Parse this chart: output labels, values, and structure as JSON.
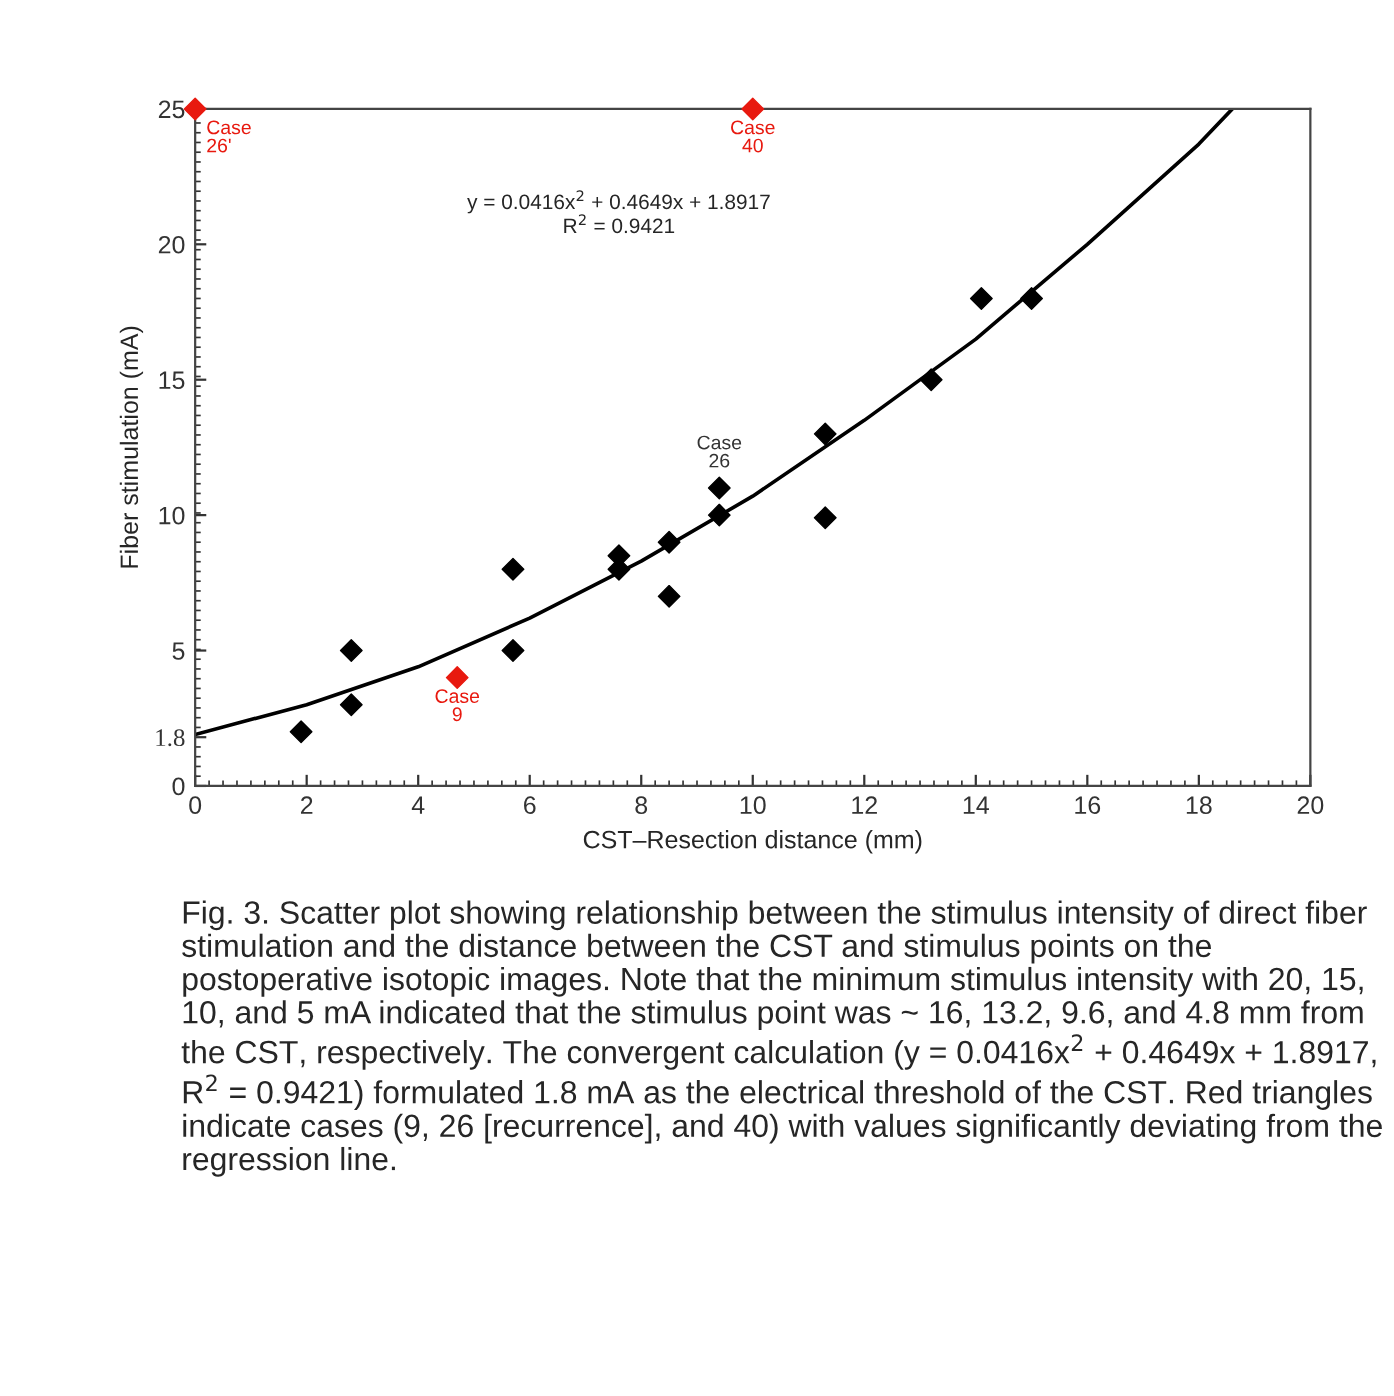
{
  "chart_data": {
    "type": "scatter",
    "xlabel": "CST–Resection distance (mm)",
    "ylabel": "Fiber stimulation (mA)",
    "xlim": [
      0,
      20
    ],
    "xticks": [
      0,
      2,
      4,
      6,
      8,
      10,
      12,
      14,
      16,
      18,
      20
    ],
    "ylim": [
      0,
      25
    ],
    "yticks": [
      0,
      {
        "value": 1.8,
        "label": "1.8"
      },
      5,
      10,
      15,
      20,
      25
    ],
    "marker": "diamond",
    "grid": false,
    "series": [
      {
        "color": "#000000",
        "x": [
          1.9,
          2.8,
          2.8,
          5.7,
          5.7,
          7.6,
          7.6,
          8.5,
          8.5,
          9.4,
          9.4,
          11.3,
          11.3,
          13.2,
          14.1,
          15.0
        ],
        "values": [
          2,
          5,
          3,
          8,
          5,
          8.5,
          8,
          9,
          7,
          11,
          10,
          13,
          9.9,
          15,
          18,
          18
        ]
      },
      {
        "color": "#e8190f",
        "x": [
          0,
          10,
          4.7
        ],
        "values": [
          25,
          25,
          4
        ]
      },
      {
        "type": "line",
        "marker": "none",
        "color": "#000000",
        "x": [
          0,
          2,
          4,
          6,
          8,
          10,
          12,
          14,
          16,
          18,
          18.6
        ],
        "values": [
          1.9,
          3.0,
          4.4,
          6.2,
          8.3,
          10.7,
          13.5,
          16.5,
          20.0,
          23.7,
          25
        ]
      }
    ],
    "annotations": [
      {
        "text": "Case\n26'",
        "x": 0,
        "y": 25
      },
      {
        "text": "Case\n40",
        "x": 10,
        "y": 25
      },
      {
        "text": "Case\n9",
        "x": 4.7,
        "y": 4
      },
      {
        "text": "Case\n26",
        "x": 9.4,
        "y": 11
      },
      "y = 0.0416x$^{2}$ + 0.4649x + 1.8917\nR$^{2}$ = 0.9421",
      "Fig. 3. Scatter plot showing relationship between the stimulus intensity of direct fiber stimulation and the distance between the CST and stimulus points on the postoperative isotopic images. Note that the minimum stimulus intensity with 20, 15, 10, and 5 mA indicated that the stimulus point was ~ 16, 13.2, 9.6, and 4.8 mm from the CST, respectively. The convergent calculation (y = 0.0416x$^{2}$ + 0.4649x + 1.8917, R$^{2}$ = 0.9421) formulated 1.8 mA as the electrical threshold of the CST. Red triangles indicate cases (9, 26 [recurrence], and 40) with values significantly deviating from the regression line."
    ]
  }
}
